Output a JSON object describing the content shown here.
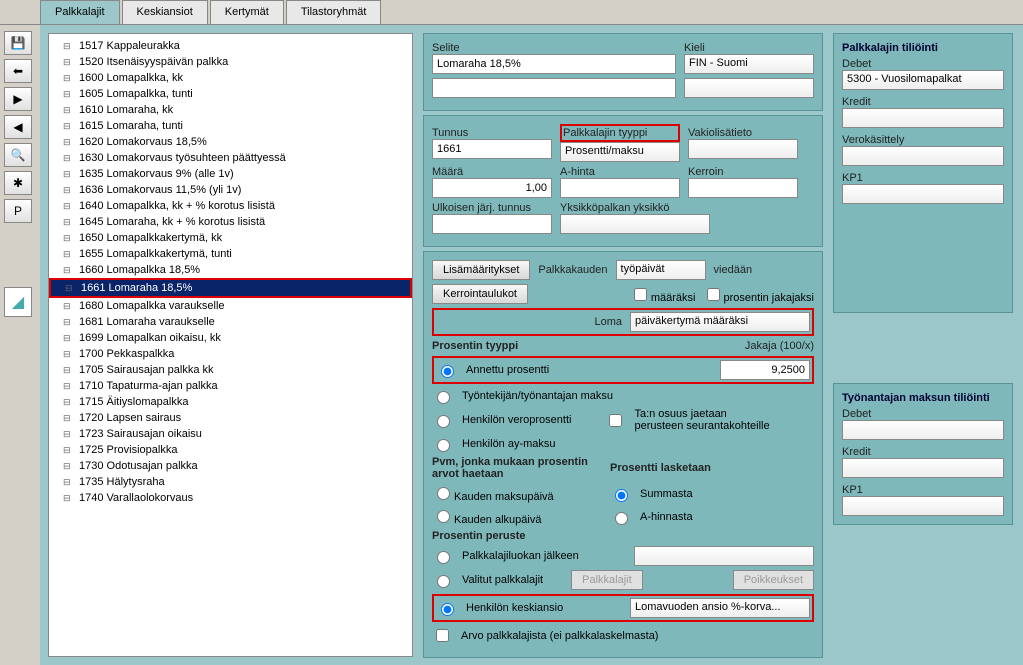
{
  "tabs": [
    "Palkkalajit",
    "Keskiansiot",
    "Kertymät",
    "Tilastoryhmät"
  ],
  "toolbar": [
    "💾",
    "⬅",
    "▶",
    "◀",
    "🔍",
    "✱",
    "P"
  ],
  "tree": [
    "1517 Kappaleurakka",
    "1520 Itsenäisyyspäivän palkka",
    "1600 Lomapalkka, kk",
    "1605 Lomapalkka, tunti",
    "1610 Lomaraha, kk",
    "1615 Lomaraha, tunti",
    "1620 Lomakorvaus 18,5%",
    "1630 Lomakorvaus työsuhteen päättyessä",
    "1635 Lomakorvaus 9% (alle 1v)",
    "1636 Lomakorvaus 11,5% (yli 1v)",
    "1640 Lomapalkka, kk +  % korotus lisistä",
    "1645 Lomaraha, kk +  % korotus lisistä",
    "1650 Lomapalkkakertymä, kk",
    "1655 Lomapalkkakertymä, tunti",
    "1660 Lomapalkka 18,5%",
    "1661 Lomaraha 18,5%",
    "1680 Lomapalkka varaukselle",
    "1681 Lomaraha varaukselle",
    "1699 Lomapalkan oikaisu, kk",
    "1700 Pekkaspalkka",
    "1705 Sairausajan palkka kk",
    "1710 Tapaturma-ajan palkka",
    "1715 Äitiyslomapalkka",
    "1720 Lapsen sairaus",
    "1723 Sairausajan oikaisu",
    "1725 Provisiopalkka",
    "1730 Odotusajan palkka",
    "1735 Hälytysraha",
    "1740 Varallaolokorvaus"
  ],
  "selectedIndex": 15,
  "f": {
    "selite_l": "Selite",
    "selite": "Lomaraha 18,5%",
    "kieli_l": "Kieli",
    "kieli": "FIN - Suomi",
    "tunnus_l": "Tunnus",
    "tunnus": "1661",
    "plt_l": "Palkkalajin tyyppi",
    "plt": "Prosentti/maksu",
    "vak_l": "Vakiolisätieto",
    "maara_l": "Määrä",
    "maara": "1,00",
    "ahinta_l": "A-hinta",
    "kerroin_l": "Kerroin",
    "ulk_l": "Ulkoisen järj. tunnus",
    "yks_l": "Yksikköpalkan yksikkö",
    "lisa_b": "Lisämääritykset",
    "kerr_b": "Kerrointaulukot",
    "plk_l": "Palkkakauden",
    "tyop": "työpäivät",
    "vied": "viedään",
    "maaraksi": "määräksi",
    "prosj": "prosentin jakajaksi",
    "loma_l": "Loma",
    "loma_v": "päiväkertymä määräksi",
    "pt_l": "Prosentin tyyppi",
    "jak_l": "Jakaja (100/x)",
    "ap": "Annettu prosentti",
    "ap_v": "9,2500",
    "tt": "Työntekijän/työnantajan maksu",
    "hv": "Henkilön veroprosentti",
    "taj": "Ta:n osuus jaetaan perusteen seurantakohteille",
    "hay": "Henkilön ay-maksu",
    "pvm_l": "Pvm, jonka mukaan prosentin arvot haetaan",
    "pl_l": "Prosentti lasketaan",
    "km": "Kauden maksupäivä",
    "ka": "Kauden alkupäivä",
    "sum": "Summasta",
    "ahi": "A-hinnasta",
    "pp_l": "Prosentin peruste",
    "plj": "Palkkalajiluokan jälkeen",
    "vp": "Valitut palkkalajit",
    "plb": "Palkkalajit",
    "poik": "Poikkeukset",
    "hk": "Henkilön keskiansio",
    "hk_v": "Lomavuoden ansio %-korva...",
    "arvo": "Arvo palkkalajista (ei palkkalaskelmasta)"
  },
  "right": {
    "pt_h": "Palkkalajin tiliöinti",
    "deb": "Debet",
    "deb_v": "5300 - Vuosilomapalkat",
    "kre": "Kredit",
    "ver": "Verokäsittely",
    "kp1": "KP1",
    "tm_h": "Työnantajan maksun tiliöinti"
  }
}
